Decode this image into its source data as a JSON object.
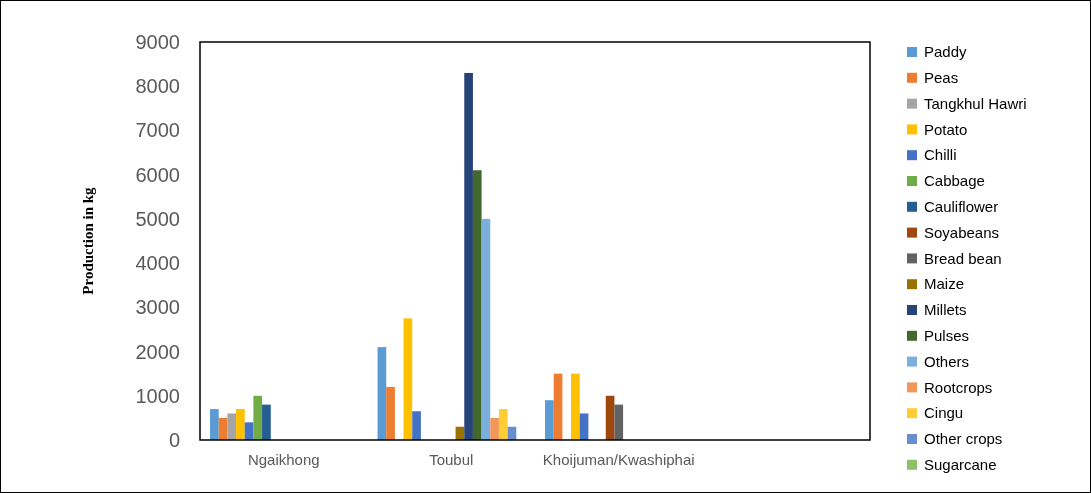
{
  "chart_data": {
    "type": "bar",
    "ylabel": "Production in kg",
    "categories": [
      "Ngaikhong",
      "Toubul",
      "Khoijuman/Kwashiphai",
      null
    ],
    "ylim": [
      0,
      9000
    ],
    "yticks": [
      0,
      1000,
      2000,
      3000,
      4000,
      5000,
      6000,
      7000,
      8000,
      9000
    ],
    "grid": false,
    "legend": "right",
    "series": [
      {
        "name": "Paddy",
        "color": "#5b9bd5",
        "values": [
          700,
          2100,
          900,
          null
        ]
      },
      {
        "name": "Peas",
        "color": "#ed7d31",
        "values": [
          500,
          1200,
          1500,
          null
        ]
      },
      {
        "name": "Tangkhul Hawri",
        "color": "#a5a5a5",
        "values": [
          600,
          null,
          null,
          null
        ]
      },
      {
        "name": "Potato",
        "color": "#ffc000",
        "values": [
          700,
          2750,
          1500,
          null
        ]
      },
      {
        "name": "Chilli",
        "color": "#4472c4",
        "values": [
          400,
          650,
          600,
          null
        ]
      },
      {
        "name": "Cabbage",
        "color": "#70ad47",
        "values": [
          1000,
          null,
          null,
          null
        ]
      },
      {
        "name": "Cauliflower",
        "color": "#255e91",
        "values": [
          800,
          null,
          null,
          null
        ]
      },
      {
        "name": "Soyabeans",
        "color": "#9e480e",
        "values": [
          null,
          null,
          1000,
          null
        ]
      },
      {
        "name": "Bread bean",
        "color": "#636363",
        "values": [
          null,
          null,
          800,
          null
        ]
      },
      {
        "name": "Maize",
        "color": "#997300",
        "values": [
          null,
          300,
          null,
          null
        ]
      },
      {
        "name": "Millets",
        "color": "#264478",
        "values": [
          null,
          8300,
          null,
          null
        ]
      },
      {
        "name": "Pulses",
        "color": "#43682b",
        "values": [
          null,
          6100,
          null,
          null
        ]
      },
      {
        "name": "Others",
        "color": "#7cafdd",
        "values": [
          null,
          5000,
          null,
          null
        ]
      },
      {
        "name": "Rootcrops",
        "color": "#f1975a",
        "values": [
          null,
          500,
          null,
          null
        ]
      },
      {
        "name": "Cingu",
        "color": "#ffcd33",
        "values": [
          null,
          700,
          null,
          null
        ]
      },
      {
        "name": "Other crops",
        "color": "#698ed0",
        "values": [
          null,
          300,
          null,
          null
        ]
      },
      {
        "name": "Sugarcane",
        "color": "#8cc168",
        "values": [
          null,
          null,
          null,
          null
        ]
      }
    ]
  }
}
